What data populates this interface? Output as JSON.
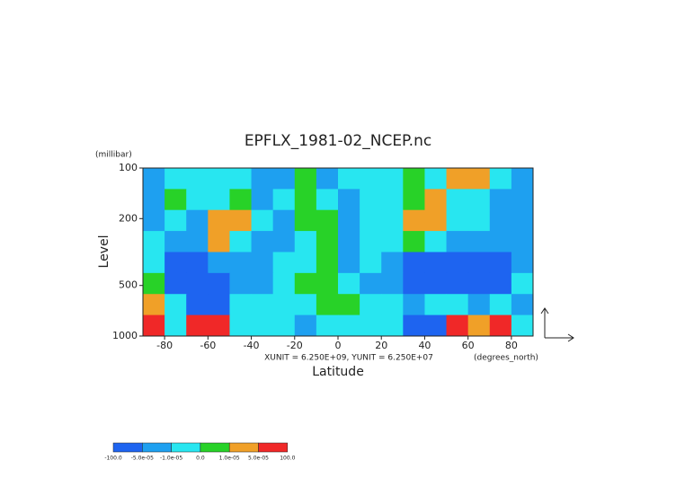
{
  "chart_data": {
    "type": "contour",
    "title": "EPFLX_1981-02_NCEP.nc",
    "y_unit_label": "(millibar)",
    "ylabel": "Level",
    "xlabel": "Latitude",
    "x_unit_label": "(degrees_north)",
    "annotation": "XUNIT = 6.250E+09, YUNIT = 6.250E+07",
    "x": [
      -85,
      -75,
      -65,
      -55,
      -45,
      -35,
      -25,
      -15,
      -5,
      5,
      15,
      25,
      35,
      45,
      55,
      65,
      75,
      85
    ],
    "y": [
      115.5,
      154,
      205,
      274,
      365,
      487,
      649,
      866
    ],
    "z": [
      [
        -3e-05,
        -5e-06,
        -5e-06,
        -5e-06,
        -5e-06,
        -3e-05,
        -3e-05,
        5e-06,
        -3e-05,
        -5e-06,
        -5e-06,
        -5e-06,
        5e-06,
        -5e-06,
        3e-05,
        3e-05,
        -5e-06,
        -3e-05
      ],
      [
        -3e-05,
        5e-06,
        -5e-06,
        -5e-06,
        5e-06,
        -3e-05,
        -5e-06,
        5e-06,
        -5e-06,
        -3e-05,
        -5e-06,
        -5e-06,
        5e-06,
        3e-05,
        -5e-06,
        -5e-06,
        -3e-05,
        -3e-05
      ],
      [
        -3e-05,
        -5e-06,
        -3e-05,
        3e-05,
        3e-05,
        -5e-06,
        -3e-05,
        5e-06,
        5e-06,
        -3e-05,
        -5e-06,
        -5e-06,
        3e-05,
        3e-05,
        -5e-06,
        -5e-06,
        -3e-05,
        -3e-05
      ],
      [
        -5e-06,
        -3e-05,
        -3e-05,
        3e-05,
        -5e-06,
        -3e-05,
        -3e-05,
        -5e-06,
        5e-06,
        -3e-05,
        -5e-06,
        -5e-06,
        5e-06,
        -5e-06,
        -3e-05,
        -3e-05,
        -3e-05,
        -3e-05
      ],
      [
        -5e-06,
        -0.0001,
        -0.0001,
        -3e-05,
        -3e-05,
        -3e-05,
        -5e-06,
        -5e-06,
        5e-06,
        -3e-05,
        -5e-06,
        -3e-05,
        -0.0001,
        -0.0001,
        -0.0001,
        -0.0001,
        -0.0001,
        -3e-05
      ],
      [
        5e-06,
        -0.0001,
        -0.0001,
        -0.0001,
        -3e-05,
        -3e-05,
        -5e-06,
        5e-06,
        5e-06,
        -5e-06,
        -3e-05,
        -3e-05,
        -0.0001,
        -0.0001,
        -0.0001,
        -0.0001,
        -0.0001,
        -5e-06
      ],
      [
        3e-05,
        -5e-06,
        -0.0001,
        -0.0001,
        -5e-06,
        -5e-06,
        -5e-06,
        -5e-06,
        5e-06,
        5e-06,
        -5e-06,
        -5e-06,
        -3e-05,
        -5e-06,
        -5e-06,
        -3e-05,
        -5e-06,
        -3e-05
      ],
      [
        0.0001,
        -5e-06,
        0.0001,
        0.0001,
        -5e-06,
        -5e-06,
        -5e-06,
        -3e-05,
        -5e-06,
        -5e-06,
        -5e-06,
        -5e-06,
        -0.0001,
        -0.0001,
        0.0001,
        3e-05,
        0.0001,
        -5e-06
      ]
    ],
    "xlim": [
      -90,
      90
    ],
    "ylim": [
      1000,
      100
    ],
    "log_y": true,
    "xticks": [
      -80,
      -60,
      -40,
      -20,
      0,
      20,
      40,
      60,
      80
    ],
    "yticks": [
      100,
      200,
      500,
      1000
    ],
    "levels": [
      {
        "value": -100,
        "label": "-100.0"
      },
      {
        "value": -5e-05,
        "label": "-5.0e-05"
      },
      {
        "value": -1e-05,
        "label": "-1.0e-05"
      },
      {
        "value": 0,
        "label": "0.0"
      },
      {
        "value": 1e-05,
        "label": "1.0e-05"
      },
      {
        "value": 5e-05,
        "label": "5.0e-05"
      },
      {
        "value": 100,
        "label": "100.0"
      }
    ],
    "colors": [
      "#1e64f0",
      "#1ea0f0",
      "#28e6f0",
      "#28d228",
      "#f0a028",
      "#f02828"
    ]
  }
}
